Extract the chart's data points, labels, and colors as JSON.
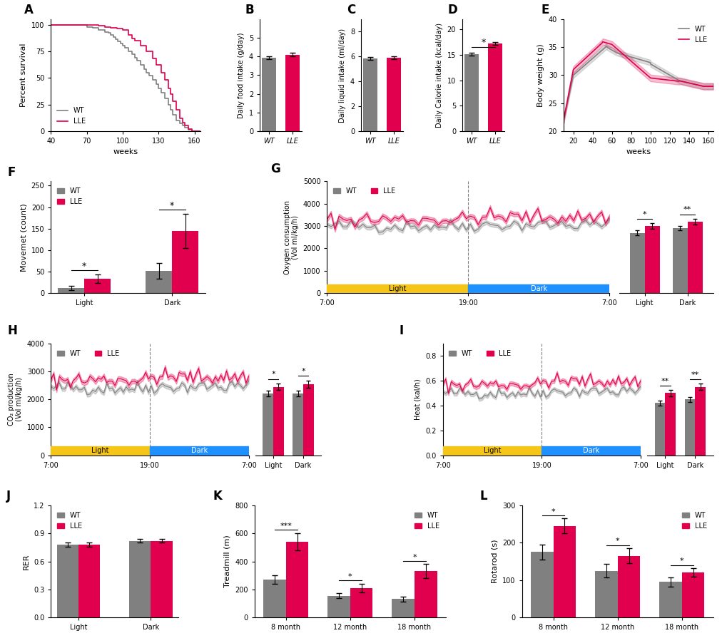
{
  "colors": {
    "wt": "#808080",
    "lle": "#E0004D",
    "wt_fill": "#808080",
    "lle_fill": "#E0004D",
    "light_band": "#F5C518",
    "dark_band": "#1E90FF"
  },
  "panel_A": {
    "title": "A",
    "xlabel": "weeks",
    "ylabel": "Percent survival",
    "xlim": [
      40,
      165
    ],
    "ylim": [
      0,
      105
    ],
    "xticks": [
      40,
      70,
      100,
      130,
      160
    ],
    "yticks": [
      0,
      25,
      50,
      75,
      100
    ]
  },
  "panel_B": {
    "title": "B",
    "ylabel": "Daily food intake (g/day)",
    "wt_val": 3.95,
    "lle_val": 4.1,
    "wt_err": 0.08,
    "lle_err": 0.1,
    "ylim": [
      0,
      6
    ],
    "yticks": [
      0,
      1,
      2,
      3,
      4,
      5
    ]
  },
  "panel_C": {
    "title": "C",
    "ylabel": "Daily liquid intake (ml/day)",
    "wt_val": 5.85,
    "lle_val": 5.9,
    "wt_err": 0.1,
    "lle_err": 0.12,
    "ylim": [
      0,
      9
    ],
    "yticks": [
      0,
      2,
      4,
      6,
      8
    ]
  },
  "panel_D": {
    "title": "D",
    "ylabel": "Daily Calorie intake (kcal/day)",
    "wt_val": 15.1,
    "lle_val": 17.2,
    "wt_err": 0.3,
    "lle_err": 0.3,
    "ylim": [
      0,
      22
    ],
    "yticks": [
      0,
      5,
      10,
      15,
      20
    ],
    "sig": "*"
  },
  "panel_E": {
    "title": "E",
    "xlabel": "weeks",
    "ylabel": "Body weight (g)",
    "xlim": [
      10,
      165
    ],
    "ylim": [
      20,
      40
    ],
    "xticks": [
      20,
      40,
      60,
      80,
      100,
      120,
      140,
      160
    ],
    "yticks": [
      20,
      25,
      30,
      35,
      40
    ]
  },
  "panel_F": {
    "title": "F",
    "ylabel": "Movemet (count)",
    "ylim": [
      0,
      260
    ],
    "yticks": [
      0,
      50,
      100,
      150,
      200,
      250
    ],
    "categories": [
      "Light",
      "Dark"
    ],
    "wt_vals": [
      12,
      52
    ],
    "lle_vals": [
      33,
      145
    ],
    "wt_errs": [
      5,
      18
    ],
    "lle_errs": [
      10,
      40
    ],
    "sig": [
      "*",
      "*"
    ]
  },
  "panel_G": {
    "title": "G",
    "ylabel": "Oxygen consumption\n(Vol ml/kg/h)",
    "ylim": [
      0,
      5000
    ],
    "yticks": [
      0,
      1000,
      2000,
      3000,
      4000,
      5000
    ],
    "bar_wt_light": 2700,
    "bar_lle_light": 3000,
    "bar_wt_dark": 2900,
    "bar_lle_dark": 3200,
    "bar_wt_light_err": 100,
    "bar_lle_light_err": 120,
    "bar_wt_dark_err": 100,
    "bar_lle_dark_err": 130,
    "sig_light": "*",
    "sig_dark": "**"
  },
  "panel_H": {
    "title": "H",
    "ylabel": "CO₂ production\n(Vol ml/kg/h)",
    "ylim": [
      0,
      4000
    ],
    "yticks": [
      0,
      1000,
      2000,
      3000,
      4000
    ],
    "bar_wt_light": 2200,
    "bar_lle_light": 2450,
    "bar_wt_dark": 2200,
    "bar_lle_dark": 2550,
    "bar_wt_light_err": 100,
    "bar_lle_light_err": 120,
    "bar_wt_dark_err": 100,
    "bar_lle_dark_err": 130,
    "sig_light": "*",
    "sig_dark": "*"
  },
  "panel_I": {
    "title": "I",
    "ylabel": "Heat (kal/h)",
    "ylim": [
      0,
      0.9
    ],
    "yticks": [
      0.0,
      0.2,
      0.4,
      0.6,
      0.8
    ],
    "bar_wt_light": 0.42,
    "bar_lle_light": 0.5,
    "bar_wt_dark": 0.45,
    "bar_lle_dark": 0.55,
    "bar_wt_light_err": 0.02,
    "bar_lle_light_err": 0.025,
    "bar_wt_dark_err": 0.02,
    "bar_lle_dark_err": 0.025,
    "sig_light": "**",
    "sig_dark": "**"
  },
  "panel_J": {
    "title": "J",
    "ylabel": "RER",
    "ylim": [
      0,
      1.2
    ],
    "yticks": [
      0.0,
      0.3,
      0.6,
      0.9,
      1.2
    ],
    "categories": [
      "Light",
      "Dark"
    ],
    "wt_vals": [
      0.78,
      0.82
    ],
    "lle_vals": [
      0.78,
      0.82
    ],
    "wt_errs": [
      0.02,
      0.02
    ],
    "lle_errs": [
      0.02,
      0.02
    ]
  },
  "panel_K": {
    "title": "K",
    "ylabel": "Treadmill (m)",
    "ylim": [
      0,
      800
    ],
    "yticks": [
      0,
      200,
      400,
      600,
      800
    ],
    "categories": [
      "8 month",
      "12 month",
      "18 month"
    ],
    "wt_vals": [
      270,
      155,
      130
    ],
    "lle_vals": [
      540,
      210,
      330
    ],
    "wt_errs": [
      30,
      20,
      20
    ],
    "lle_errs": [
      60,
      30,
      50
    ],
    "sigs": [
      "***",
      "*",
      "*"
    ]
  },
  "panel_L": {
    "title": "L",
    "ylabel": "Rotarod (s)",
    "ylim": [
      0,
      300
    ],
    "yticks": [
      0,
      100,
      200,
      300
    ],
    "categories": [
      "8 month",
      "12 month",
      "18 month"
    ],
    "wt_vals": [
      175,
      125,
      95
    ],
    "lle_vals": [
      245,
      165,
      120
    ],
    "wt_errs": [
      20,
      18,
      12
    ],
    "lle_errs": [
      20,
      20,
      12
    ],
    "sigs": [
      "*",
      "*",
      "*"
    ]
  }
}
